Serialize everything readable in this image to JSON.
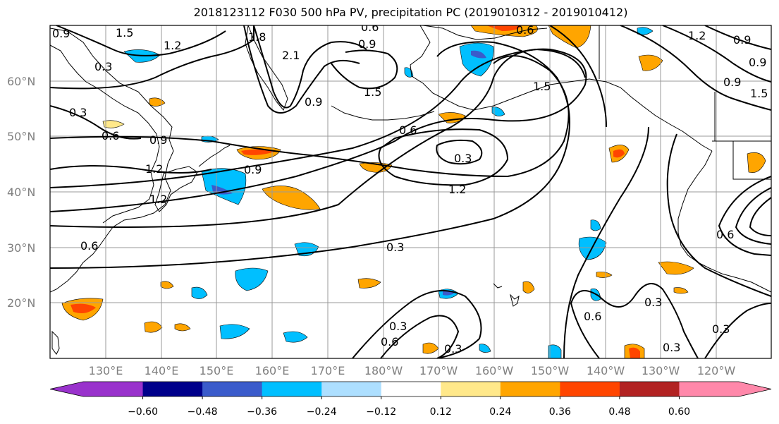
{
  "title": "2018123112 F030 500 hPa PV, precipitation PC (2019010312 - 2019010412)",
  "latitude_labels": [
    "60°N",
    "50°N",
    "40°N",
    "30°N",
    "20°N"
  ],
  "longitude_labels": [
    "130°E",
    "140°E",
    "150°E",
    "160°E",
    "170°E",
    "180°W",
    "170°W",
    "160°W",
    "150°W",
    "140°W",
    "130°W",
    "120°W"
  ],
  "colorbar": {
    "ticks": [
      "−0.60",
      "−0.48",
      "−0.36",
      "−0.24",
      "−0.12",
      "0.12",
      "0.24",
      "0.36",
      "0.48",
      "0.60"
    ],
    "colors": [
      "#9932CC",
      "#00008B",
      "#3A5BCB",
      "#00BFFF",
      "#ADDFFF",
      "#FFFFFF",
      "#FFE88A",
      "#FFA500",
      "#FF4500",
      "#B22222",
      "#FF88AA"
    ]
  },
  "contour_labels": [
    "1.5",
    "0.9",
    "0.3",
    "0.3",
    "0.6",
    "0.9",
    "1.2",
    "1.2",
    "0.9",
    "0.6",
    "0.6",
    "0.9",
    "2.1",
    "1.8",
    "0.9",
    "1.5",
    "1.2",
    "0.6",
    "0.3",
    "1.2",
    "1.5",
    "0.6",
    "1.2",
    "0.9",
    "0.9",
    "1.5",
    "0.6",
    "0.3",
    "0.3",
    "0.6",
    "0.3",
    "0.6",
    "0.3",
    "0.3",
    "0.3",
    "0.9"
  ],
  "colors": {
    "land_outline": "#000000",
    "grid": "#9a9a9a",
    "contour": "#000000"
  }
}
